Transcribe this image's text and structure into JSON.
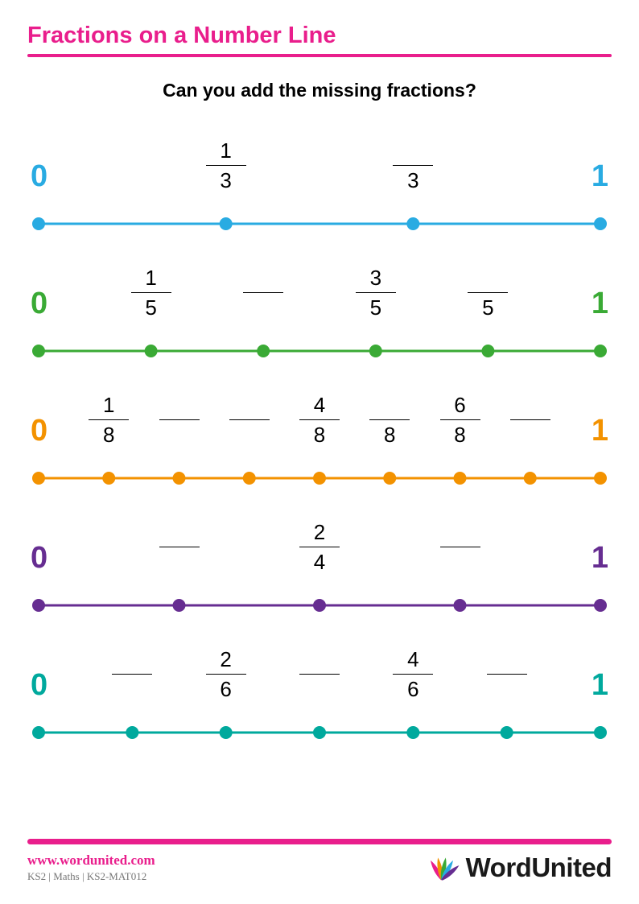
{
  "title": {
    "text": "Fractions on a Number Line",
    "color": "#e91e8c",
    "underline_color": "#e91e8c"
  },
  "instruction": "Can you add the missing fractions?",
  "number_lines": [
    {
      "color": "#29abe2",
      "start_label": "0",
      "end_label": "1",
      "segments": 3,
      "dot_radius": 8,
      "line_width": 3,
      "fractions": [
        {
          "pos": 1,
          "numerator": "1",
          "denominator": "3"
        },
        {
          "pos": 2,
          "numerator": "",
          "denominator": "3"
        }
      ]
    },
    {
      "color": "#3aaa35",
      "start_label": "0",
      "end_label": "1",
      "segments": 5,
      "dot_radius": 8,
      "line_width": 3,
      "fractions": [
        {
          "pos": 1,
          "numerator": "1",
          "denominator": "5"
        },
        {
          "pos": 2,
          "numerator": "",
          "denominator": ""
        },
        {
          "pos": 3,
          "numerator": "3",
          "denominator": "5"
        },
        {
          "pos": 4,
          "numerator": "",
          "denominator": "5"
        }
      ]
    },
    {
      "color": "#f39200",
      "start_label": "0",
      "end_label": "1",
      "segments": 8,
      "dot_radius": 8,
      "line_width": 3,
      "fractions": [
        {
          "pos": 1,
          "numerator": "1",
          "denominator": "8"
        },
        {
          "pos": 2,
          "numerator": "",
          "denominator": ""
        },
        {
          "pos": 3,
          "numerator": "",
          "denominator": ""
        },
        {
          "pos": 4,
          "numerator": "4",
          "denominator": "8"
        },
        {
          "pos": 5,
          "numerator": "",
          "denominator": "8"
        },
        {
          "pos": 6,
          "numerator": "6",
          "denominator": "8"
        },
        {
          "pos": 7,
          "numerator": "",
          "denominator": ""
        }
      ]
    },
    {
      "color": "#662d91",
      "start_label": "0",
      "end_label": "1",
      "segments": 4,
      "dot_radius": 8,
      "line_width": 3,
      "fractions": [
        {
          "pos": 1,
          "numerator": "",
          "denominator": ""
        },
        {
          "pos": 2,
          "numerator": "2",
          "denominator": "4"
        },
        {
          "pos": 3,
          "numerator": "",
          "denominator": ""
        }
      ]
    },
    {
      "color": "#00a99d",
      "start_label": "0",
      "end_label": "1",
      "segments": 6,
      "dot_radius": 8,
      "line_width": 3,
      "fractions": [
        {
          "pos": 1,
          "numerator": "",
          "denominator": ""
        },
        {
          "pos": 2,
          "numerator": "2",
          "denominator": "6"
        },
        {
          "pos": 3,
          "numerator": "",
          "denominator": ""
        },
        {
          "pos": 4,
          "numerator": "4",
          "denominator": "6"
        },
        {
          "pos": 5,
          "numerator": "",
          "denominator": ""
        }
      ]
    }
  ],
  "footer": {
    "bar_color": "#e91e8c",
    "url": "www.wordunited.com",
    "url_color": "#e91e8c",
    "meta": "KS2 | Maths | KS2-MAT012",
    "brand": "WordUnited",
    "logo_colors": [
      "#e91e8c",
      "#f39200",
      "#3aaa35",
      "#29abe2",
      "#662d91"
    ]
  }
}
